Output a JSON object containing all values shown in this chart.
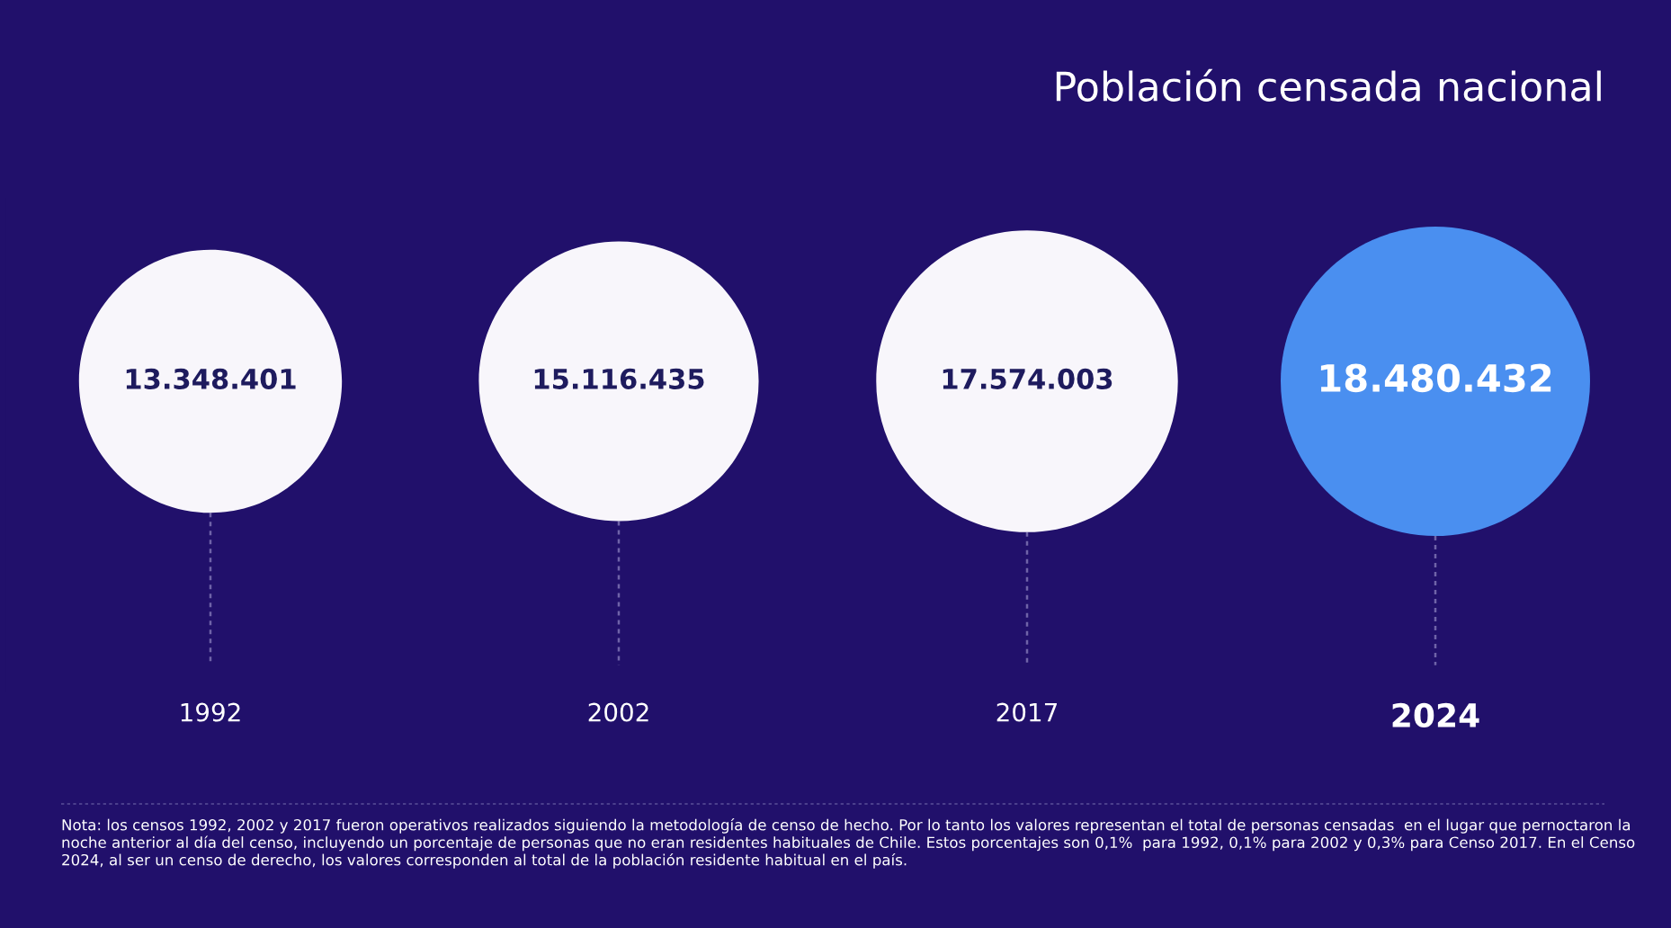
{
  "chart_data": {
    "type": "other",
    "title": "Población censada nacional",
    "categories": [
      "1992",
      "2002",
      "2017",
      "2024"
    ],
    "values": [
      13348401,
      15116435,
      17574003,
      18480432
    ],
    "value_labels": [
      "13.348.401",
      "15.116.435",
      "17.574.003",
      "18.480.432"
    ],
    "colors": [
      "#f8f6fb",
      "#f8f6fb",
      "#f8f6fb",
      "#4a8ff0"
    ],
    "annotations": [
      "Nota: los censos 1992, 2002 y 2017 fueron operativos realizados siguiendo la metodología de censo de hecho. Por lo tanto los valores representan el total de personas censadas  en el lugar que pernoctaron la noche anterior al día del censo, incluyendo un porcentaje de personas que no eran residentes habituales de Chile. Estos porcentajes son 0,1%  para 1992, 0,1% para 2002 y 0,3% para Censo 2017. En el Censo 2024, al ser un censo de derecho, los valores corresponden al total de la población residente habitual en el país."
    ]
  }
}
